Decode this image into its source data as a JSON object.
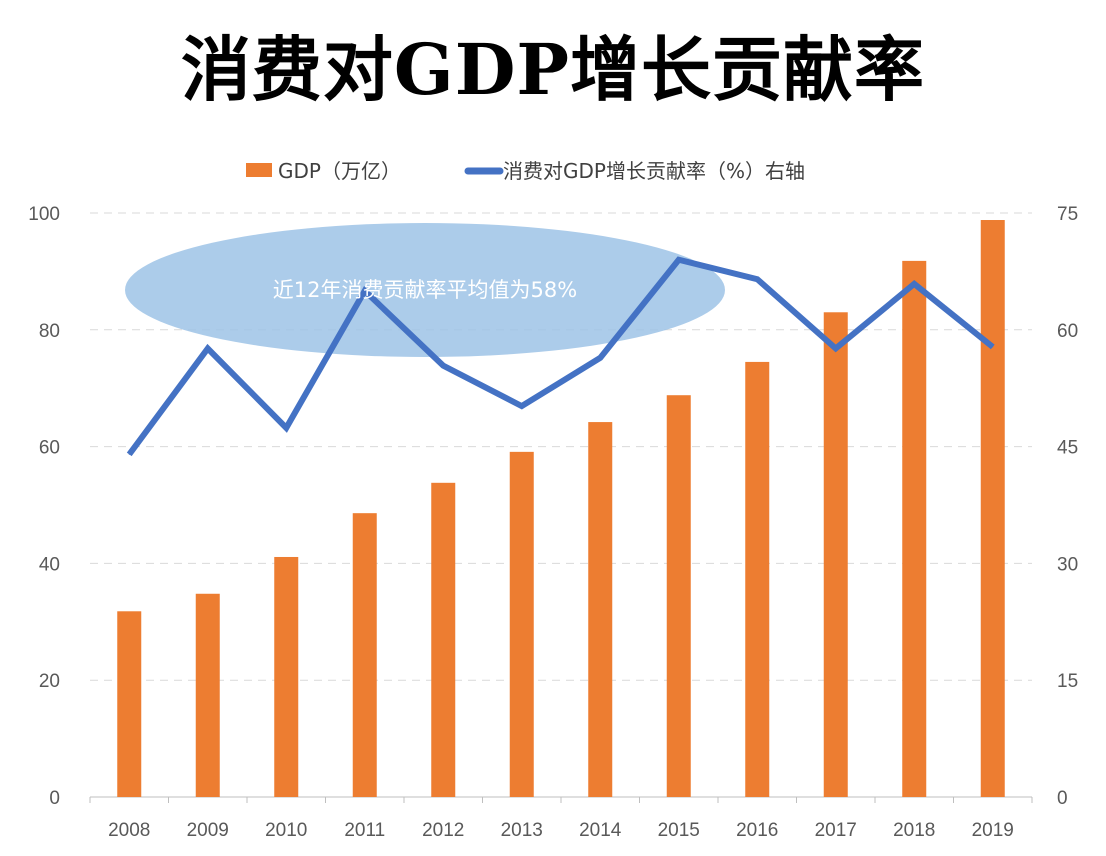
{
  "chart_data": {
    "type": "bar+line",
    "title": "消费对GDP增长贡献率",
    "categories": [
      "2008",
      "2009",
      "2010",
      "2011",
      "2012",
      "2013",
      "2014",
      "2015",
      "2016",
      "2017",
      "2018",
      "2019"
    ],
    "series": [
      {
        "name": "GDP（万亿）",
        "type": "bar",
        "axis": "left",
        "color": "#ED7D31",
        "values": [
          31.8,
          34.8,
          41.1,
          48.6,
          53.8,
          59.1,
          64.2,
          68.8,
          74.5,
          83.0,
          91.8,
          98.8
        ]
      },
      {
        "name": "消费对GDP增长贡献率（%）右轴",
        "type": "line",
        "axis": "right",
        "color": "#4472C4",
        "values": [
          44.0,
          57.6,
          47.4,
          65.0,
          55.4,
          50.2,
          56.4,
          69.0,
          66.5,
          57.6,
          65.9,
          57.8
        ]
      }
    ],
    "left_axis": {
      "range": [
        0,
        100
      ],
      "ticks": [
        "0",
        "20",
        "40",
        "60",
        "80",
        "100"
      ]
    },
    "right_axis": {
      "range": [
        0,
        75
      ],
      "ticks": [
        "0",
        "15",
        "30",
        "45",
        "60",
        "75"
      ]
    },
    "grid": true,
    "legend_position": "top",
    "annotation": "近12年消费贡献率平均值为58%",
    "annotation_color": "#9DC3E6"
  }
}
